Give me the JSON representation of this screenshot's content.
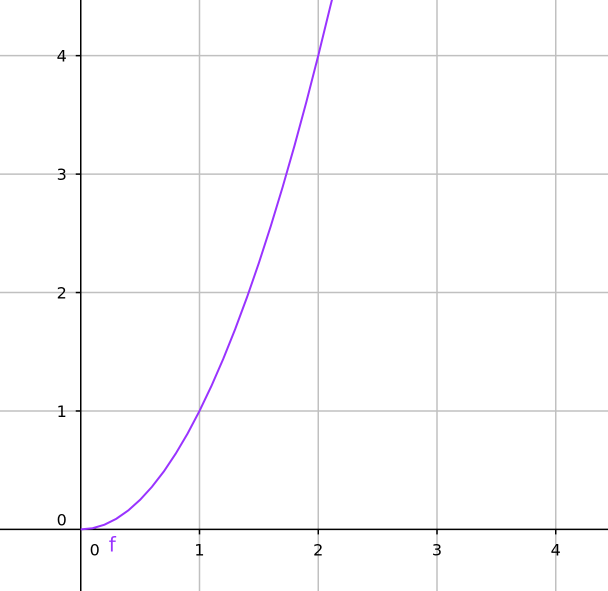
{
  "chart_data": {
    "type": "line",
    "title": "",
    "xlabel": "",
    "ylabel": "",
    "xlim": [
      -0.68,
      4.44
    ],
    "ylim": [
      -0.52,
      4.47
    ],
    "grid": true,
    "x_ticks": [
      "0",
      "1",
      "2",
      "3",
      "4"
    ],
    "y_ticks": [
      "0",
      "1",
      "2",
      "3",
      "4"
    ],
    "series": [
      {
        "name": "f",
        "color": "#9933ff",
        "x": [
          0,
          0.1,
          0.2,
          0.3,
          0.4,
          0.5,
          0.6,
          0.7,
          0.8,
          0.9,
          1,
          1.1,
          1.2,
          1.3,
          1.4,
          1.5,
          1.6,
          1.7,
          1.8,
          1.9,
          2,
          2.1,
          2.12
        ],
        "y": [
          0,
          0.01,
          0.04,
          0.09,
          0.16,
          0.25,
          0.36,
          0.49,
          0.64,
          0.81,
          1,
          1.21,
          1.44,
          1.69,
          1.96,
          2.25,
          2.56,
          2.89,
          3.24,
          3.61,
          4,
          4.41,
          4.49
        ]
      }
    ]
  }
}
